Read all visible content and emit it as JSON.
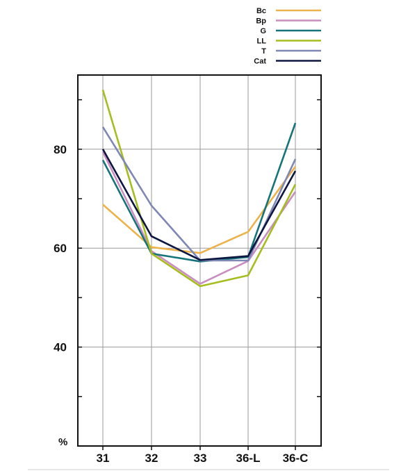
{
  "chart_data": {
    "type": "line",
    "title": "",
    "xlabel": "",
    "ylabel": "",
    "y_unit_label": "%",
    "categories": [
      "31",
      "32",
      "33",
      "36-L",
      "36-C"
    ],
    "ylim": [
      20,
      95
    ],
    "yticks": [
      40,
      60,
      80
    ],
    "grid": true,
    "legend_position": "top-right",
    "series": [
      {
        "name": "Bc",
        "color": "#EDB24A",
        "values": [
          68.8,
          60.2,
          59.0,
          63.3,
          76.5
        ]
      },
      {
        "name": "Bp",
        "color": "#C98DBF",
        "values": [
          79.5,
          59.4,
          52.8,
          57.4,
          71.4
        ]
      },
      {
        "name": "G",
        "color": "#15747A",
        "values": [
          77.8,
          58.9,
          57.3,
          58.2,
          85.3
        ]
      },
      {
        "name": "LL",
        "color": "#A6BD1F",
        "values": [
          92.0,
          58.9,
          52.3,
          54.5,
          72.9
        ]
      },
      {
        "name": "T",
        "color": "#7E87B5",
        "values": [
          84.5,
          68.6,
          57.5,
          57.5,
          78.0
        ]
      },
      {
        "name": "Cat",
        "color": "#0D1640",
        "values": [
          80.0,
          62.4,
          57.6,
          58.4,
          75.6
        ]
      }
    ]
  }
}
